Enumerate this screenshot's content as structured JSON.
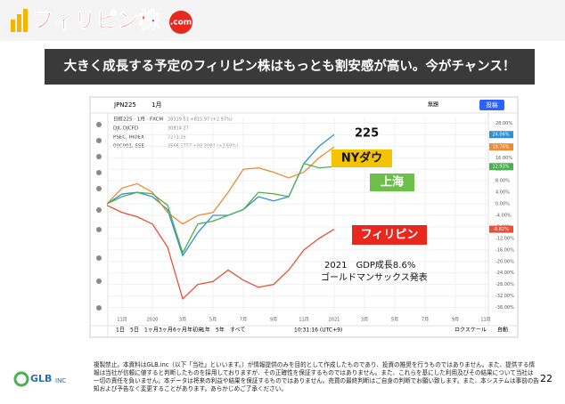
{
  "header": {
    "logo": "フィリピン株",
    "logo_badge": ".com",
    "banner": "大きく成長する予定のフィリピン株はもっとも割安感が高い。今がチャンス！"
  },
  "toolbar": {
    "symbol": "JPN225",
    "period": "1月",
    "title": "無題",
    "post": "投稿",
    "legend": [
      "日経225 · 1月 · FXCM",
      "DJI, DJCFD",
      "PSEC, IHDEX",
      "000001, SSE"
    ],
    "legend_values": [
      "28319.53 +815.97 (+2.97%)",
      "30814.27",
      "7273.15",
      "3566.3777 +93.3084 (+2.69%)"
    ],
    "ranges": [
      "1日",
      "5日",
      "1ヶ月",
      "3ヶ月",
      "6ヶ月",
      "年初来",
      "1年",
      "5年",
      "すべて"
    ],
    "clock": "10:31:16 (UTC+9)",
    "scale": "ロクスケール",
    "auto": "自動"
  },
  "chart_data": {
    "type": "line",
    "categories": [
      null,
      "11月",
      null,
      "2020",
      null,
      "3月",
      null,
      "5月",
      null,
      "7月",
      null,
      "9月",
      null,
      "11月",
      null,
      "2021",
      null,
      "3月",
      null,
      "5月",
      null,
      "7月",
      null,
      "9月",
      null,
      "11月"
    ],
    "series": [
      {
        "name": "225",
        "color": "#2f8fd8",
        "values": [
          0,
          3.4,
          4,
          2.5,
          -2,
          -18,
          -10,
          -4,
          -4,
          -2,
          2.5,
          1,
          2.5,
          14,
          20,
          24.06,
          null,
          null,
          null,
          null,
          null,
          null,
          null,
          null,
          null,
          null
        ],
        "value_labels": [
          null,
          null,
          null,
          null,
          null,
          null,
          null,
          null,
          null,
          null,
          null,
          null,
          null,
          null,
          null,
          "24.06%",
          null,
          null,
          null,
          null,
          null,
          null,
          null,
          null,
          null,
          null
        ]
      },
      {
        "name": "NYダウ",
        "color": "#f08a30",
        "values": [
          0,
          5.5,
          7,
          4,
          -3,
          -7,
          -4,
          -3,
          4,
          12,
          12.5,
          11,
          9,
          11,
          16,
          19.76,
          null,
          null,
          null,
          null,
          null,
          null,
          null,
          null,
          null,
          null
        ],
        "value_labels": [
          null,
          null,
          null,
          null,
          null,
          null,
          null,
          null,
          null,
          null,
          null,
          null,
          null,
          null,
          null,
          "19.76%",
          null,
          null,
          null,
          null,
          null,
          null,
          null,
          null,
          null,
          null
        ]
      },
      {
        "name": "上海",
        "color": "#4caf50",
        "values": [
          0,
          2.5,
          4,
          3.5,
          -0.5,
          -17,
          -7,
          -6,
          -4,
          -2,
          4,
          3.5,
          2.5,
          14,
          12.5,
          12.93,
          null,
          null,
          null,
          null,
          null,
          null,
          null,
          null,
          null,
          null
        ],
        "value_labels": [
          null,
          null,
          null,
          null,
          null,
          null,
          null,
          null,
          null,
          null,
          null,
          null,
          null,
          null,
          null,
          "12.93%",
          null,
          null,
          null,
          null,
          null,
          null,
          null,
          null,
          null,
          null
        ]
      },
      {
        "name": "フィリピン",
        "color": "#e8503a",
        "values": [
          -0.5,
          -3,
          -4.5,
          -7,
          -15,
          -33,
          -28,
          -27,
          -23,
          -26.5,
          -29,
          -28,
          -23,
          -16,
          -12,
          -8.82,
          null,
          null,
          null,
          null,
          null,
          null,
          null,
          null,
          null,
          null
        ],
        "value_labels": [
          null,
          null,
          null,
          null,
          null,
          null,
          null,
          null,
          null,
          null,
          null,
          null,
          null,
          null,
          null,
          "-8.82%",
          null,
          null,
          null,
          null,
          null,
          null,
          null,
          null,
          null,
          null
        ]
      }
    ],
    "annotations": [
      {
        "text": "225",
        "color": "#111",
        "bg": null
      },
      {
        "text": "NYダウ",
        "color": "#111",
        "bg": "#f5c400"
      },
      {
        "text": "上海",
        "color": "#fff",
        "bg": "#6cc04a"
      },
      {
        "text": "フィリピン",
        "color": "#fff",
        "bg": "#e8281e"
      }
    ],
    "note": [
      "2021　GDP成長8.6%",
      "ゴールドマンサックス発表"
    ],
    "ylim": [
      -38,
      30
    ],
    "yticks": [
      {
        "value": 28,
        "label": "28.00%"
      },
      {
        "value": 24,
        "label": "24.00%"
      },
      {
        "value": 20,
        "label": "20.00%"
      },
      {
        "value": 16,
        "label": "16.00%"
      },
      {
        "value": 12,
        "label": "12.00%"
      },
      {
        "value": 8,
        "label": "8.00%"
      },
      {
        "value": 4,
        "label": "4.00%"
      },
      {
        "value": 0,
        "label": "0.00%"
      },
      {
        "value": -4,
        "label": "-4.00%"
      },
      {
        "value": -8,
        "label": "-8.00%"
      },
      {
        "value": -12,
        "label": "-12.00%"
      },
      {
        "value": -16,
        "label": "-16.00%"
      },
      {
        "value": -20,
        "label": "-20.00%"
      },
      {
        "value": -24,
        "label": "-24.00%"
      },
      {
        "value": -28,
        "label": "-28.00%"
      },
      {
        "value": -32,
        "label": "-32.00%"
      },
      {
        "value": -36,
        "label": "-36.00%"
      }
    ],
    "grid": true
  },
  "footer": {
    "company": "GLB",
    "company_suffix": "INC",
    "disclaimer": "複製禁止。本資料はGLB.inc（以下「当社」といいます。）が情報提供のみを目的として作成したものであり、投資の推奨を行うものではありません。また、提供する情報は当社が信頼に値すると判断したものを採用しておりますが、その正確性を保証するものではありません。また、これらを基にした利用及びその結果について当社は一切の責任を負いません。本データは将来の利益や結果を保証するものではありません。売買の最終判断はご自身の判断でお願い致します。また、本システムは事前の告知および予告なく変更することがあります。あらかじめご了承ください。",
    "page": "22"
  }
}
